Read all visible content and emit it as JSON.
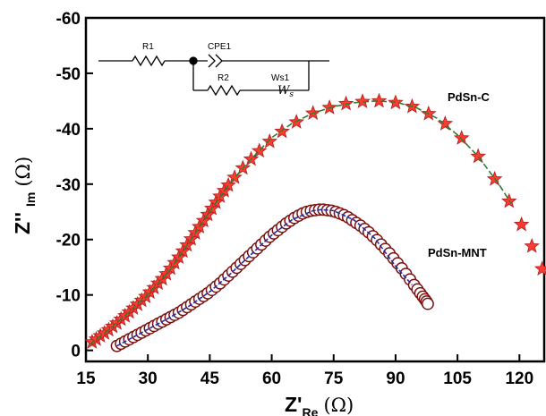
{
  "colors": {
    "star_fill": "#ff3b30",
    "star_stroke": "#b22222",
    "circle_stroke": "#7a1010",
    "circle_fill": "#ffffff",
    "fit_pdsnc": "#2e7d32",
    "fit_pdsnmnt": "#1f2fb0"
  },
  "chart_data": {
    "type": "scatter",
    "xlabel": {
      "main": "Z'",
      "sub": "Re",
      "unit": "(Ω)"
    },
    "ylabel": {
      "main": "Z''",
      "sub": "Im",
      "unit": "(Ω)"
    },
    "xlim": [
      15,
      126
    ],
    "ylim": [
      2,
      -60
    ],
    "y_inverted": true,
    "x_ticks": [
      15,
      30,
      45,
      60,
      75,
      90,
      105,
      120
    ],
    "y_ticks": [
      0,
      -10,
      -20,
      -30,
      -40,
      -50,
      -60
    ],
    "x_tick_labels": [
      "15",
      "30",
      "45",
      "60",
      "75",
      "90",
      "105",
      "120"
    ],
    "y_tick_labels": [
      "0",
      "-10",
      "-20",
      "-30",
      "-40",
      "-50",
      "-60"
    ],
    "grid": false,
    "circuit_labels": {
      "r1": "R1",
      "cpe1": "CPE1",
      "r2": "R2",
      "ws1": "Ws1",
      "ws_symbol": "W",
      "ws_sub": "s"
    },
    "series": [
      {
        "name": "PdSn-C",
        "marker": "star",
        "x": [
          16.5,
          17.5,
          18.5,
          19.5,
          20.5,
          21.5,
          22.5,
          23.5,
          24.5,
          25.5,
          26.5,
          27.5,
          28.5,
          29.5,
          30.5,
          31.5,
          32.5,
          33.5,
          34.5,
          35.5,
          36.5,
          37.5,
          38.5,
          39.5,
          40.5,
          41.5,
          42.5,
          43.5,
          44.5,
          45.5,
          46.5,
          47.5,
          48.5,
          49.5,
          51,
          53,
          55,
          57,
          59.5,
          62.5,
          66,
          70,
          74,
          78,
          82,
          86,
          90,
          94,
          98,
          102,
          106,
          110,
          114,
          117.5,
          120.5,
          123,
          125.5
        ],
        "y": [
          -1.5,
          -2.0,
          -2.6,
          -3.1,
          -3.7,
          -4.3,
          -4.9,
          -5.6,
          -6.2,
          -6.9,
          -7.6,
          -8.3,
          -9.0,
          -9.7,
          -10.5,
          -11.3,
          -12.1,
          -12.9,
          -13.8,
          -14.8,
          -15.8,
          -16.8,
          -17.9,
          -19.0,
          -20.1,
          -21.2,
          -22.3,
          -23.4,
          -24.5,
          -25.6,
          -26.7,
          -27.8,
          -28.8,
          -29.8,
          -31.2,
          -32.9,
          -34.5,
          -36.0,
          -37.7,
          -39.5,
          -41.2,
          -42.8,
          -43.8,
          -44.5,
          -44.9,
          -45.0,
          -44.7,
          -44.0,
          -42.7,
          -40.9,
          -38.3,
          -35.0,
          -30.9,
          -26.9,
          -22.7,
          -18.8,
          -14.7
        ]
      },
      {
        "name": "PdSn-MNT",
        "marker": "circle",
        "x": [
          22.5,
          23.5,
          24.5,
          25.5,
          26.5,
          27.5,
          28.5,
          29.5,
          30.5,
          31.5,
          32.5,
          33.5,
          34.5,
          35.5,
          36.5,
          37.5,
          38.5,
          39.5,
          40.5,
          41.5,
          42.5,
          43.5,
          44.5,
          45.5,
          46.5,
          47.5,
          48.5,
          49.5,
          50.5,
          51.5,
          52.5,
          53.5,
          54.5,
          55.5,
          56.5,
          57.5,
          58.5,
          59.5,
          60.5,
          61.5,
          62.5,
          63.5,
          64.5,
          65.5,
          66.5,
          67.5,
          68.5,
          69.5,
          70.5,
          71.5,
          72.5,
          73.5,
          74.5,
          75.5,
          76.5,
          77.5,
          78.5,
          79.5,
          80.5,
          81.5,
          82.5,
          83.5,
          84.5,
          85.5,
          86.5,
          87.5,
          88.5,
          89.5,
          90.5,
          91.5,
          92.5,
          93.5,
          94.5,
          95.3,
          96.0,
          96.6,
          97.1,
          97.5,
          97.8
        ],
        "y": [
          -0.8,
          -1.2,
          -1.6,
          -2.0,
          -2.4,
          -2.8,
          -3.2,
          -3.6,
          -4.0,
          -4.4,
          -4.8,
          -5.2,
          -5.6,
          -6.0,
          -6.4,
          -6.8,
          -7.3,
          -7.8,
          -8.3,
          -8.8,
          -9.3,
          -9.8,
          -10.3,
          -10.9,
          -11.5,
          -12.1,
          -12.8,
          -13.5,
          -14.2,
          -14.9,
          -15.6,
          -16.3,
          -17.0,
          -17.7,
          -18.4,
          -19.1,
          -19.8,
          -20.5,
          -21.1,
          -21.7,
          -22.3,
          -22.9,
          -23.4,
          -23.9,
          -24.3,
          -24.7,
          -25.0,
          -25.2,
          -25.3,
          -25.4,
          -25.4,
          -25.3,
          -25.2,
          -25.0,
          -24.7,
          -24.4,
          -24.0,
          -23.5,
          -23.0,
          -22.5,
          -21.9,
          -21.3,
          -20.6,
          -19.9,
          -19.1,
          -18.3,
          -17.5,
          -16.6,
          -15.7,
          -14.8,
          -13.8,
          -12.8,
          -11.8,
          -11.0,
          -10.3,
          -9.7,
          -9.2,
          -8.8,
          -8.4
        ]
      }
    ],
    "fits": [
      {
        "series": "PdSn-C",
        "x": [
          16,
          20,
          25,
          30,
          35,
          40,
          45,
          50,
          55,
          60,
          65,
          70,
          75,
          80,
          85,
          90,
          95,
          100,
          105,
          110,
          115,
          118
        ],
        "y": [
          -1.1,
          -3.4,
          -6.6,
          -10.1,
          -14.2,
          -19.5,
          -25.1,
          -30.3,
          -34.5,
          -38.4,
          -41.0,
          -42.8,
          -44.0,
          -44.7,
          -45.0,
          -44.8,
          -43.8,
          -41.9,
          -38.9,
          -35.0,
          -30.0,
          -26.5
        ]
      },
      {
        "series": "PdSn-MNT",
        "x": [
          22.5,
          25,
          30,
          35,
          40,
          45,
          50,
          55,
          60,
          65,
          70,
          72,
          75,
          80,
          85,
          90,
          94
        ],
        "y": [
          -0.8,
          -1.8,
          -3.8,
          -5.8,
          -8.0,
          -10.6,
          -13.8,
          -17.3,
          -20.8,
          -23.6,
          -25.2,
          -25.4,
          -25.2,
          -23.5,
          -20.2,
          -15.2,
          -11.8
        ]
      }
    ]
  }
}
